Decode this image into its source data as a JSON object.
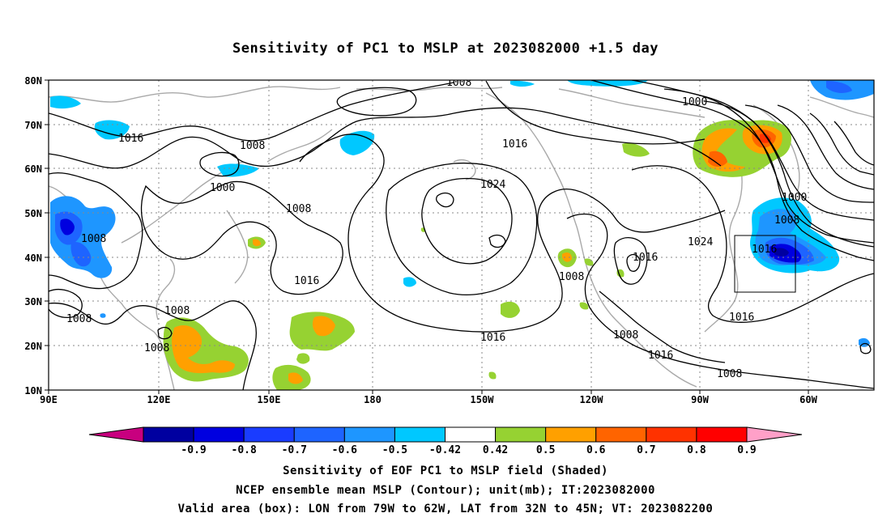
{
  "title": "Sensitivity of PC1 to MSLP at 2023082000 +1.5 day",
  "map": {
    "lat_labels": [
      "80N",
      "70N",
      "60N",
      "50N",
      "40N",
      "30N",
      "20N",
      "10N"
    ],
    "lon_labels": [
      "90E",
      "120E",
      "150E",
      "180",
      "150W",
      "120W",
      "90W",
      "60W"
    ],
    "contour_labels": [
      "1008",
      "1016",
      "1008",
      "1000",
      "1008",
      "1016",
      "1024",
      "1000",
      "1000",
      "1008",
      "1024",
      "1016",
      "1016",
      "1008",
      "1008",
      "1008",
      "1016",
      "1016",
      "1016",
      "1008",
      "1016",
      "1008"
    ],
    "box": {
      "lon_from": "79W",
      "lon_to": "62W",
      "lat_from": "32N",
      "lat_to": "45N"
    }
  },
  "colorbar": {
    "ticks": [
      "-0.9",
      "-0.8",
      "-0.7",
      "-0.6",
      "-0.5",
      "-0.42",
      "0.42",
      "0.5",
      "0.6",
      "0.7",
      "0.8",
      "0.9"
    ],
    "colors": [
      "#c8007f",
      "#0000a0",
      "#0000e0",
      "#1a3cff",
      "#1e64ff",
      "#1e96ff",
      "#00c8ff",
      "#ffffff",
      "#96d232",
      "#ffa000",
      "#ff6400",
      "#ff3200",
      "#ff0000",
      "#ffa0c8"
    ]
  },
  "captions": {
    "line1": "Sensitivity of EOF PC1 to MSLP field (Shaded)",
    "line2": "NCEP ensemble mean MSLP (Contour); unit(mb); IT:2023082000",
    "line3": "Valid area (box): LON from 79W to 62W, LAT from 32N to 45N; VT: 2023082200"
  }
}
